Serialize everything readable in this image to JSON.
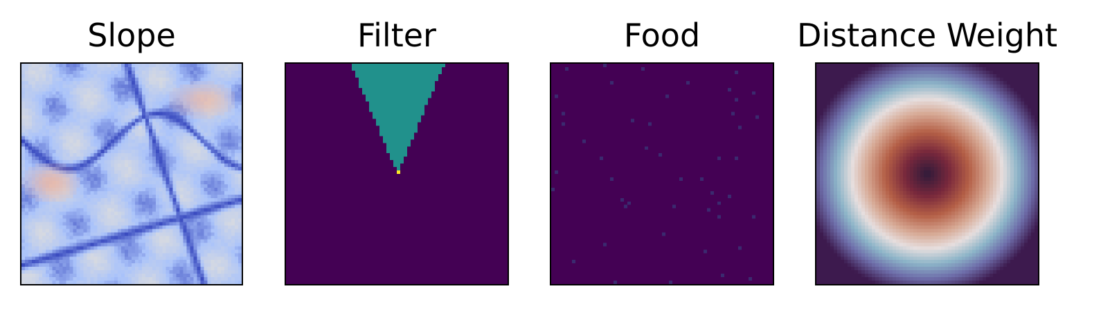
{
  "panels": [
    {
      "id": "slope",
      "title": "Slope",
      "colormap": "coolwarm"
    },
    {
      "id": "filter",
      "title": "Filter",
      "colormap": "viridis"
    },
    {
      "id": "food",
      "title": "Food",
      "colormap": "viridis"
    },
    {
      "id": "distance",
      "title": "Distance Weight",
      "colormap": "twilight_shifted"
    }
  ],
  "colors": {
    "background_purple": "#440154",
    "teal": "#21918c",
    "yellow": "#fde725",
    "food_dot": "#3b2a6f",
    "slope_low": "#3b4cc0",
    "slope_mid": "#dddddd",
    "slope_high": "#f5a889",
    "dist_center": "#2f1a3a",
    "dist_ring": "#e6dede",
    "dist_edge": "#3d1a4e"
  }
}
